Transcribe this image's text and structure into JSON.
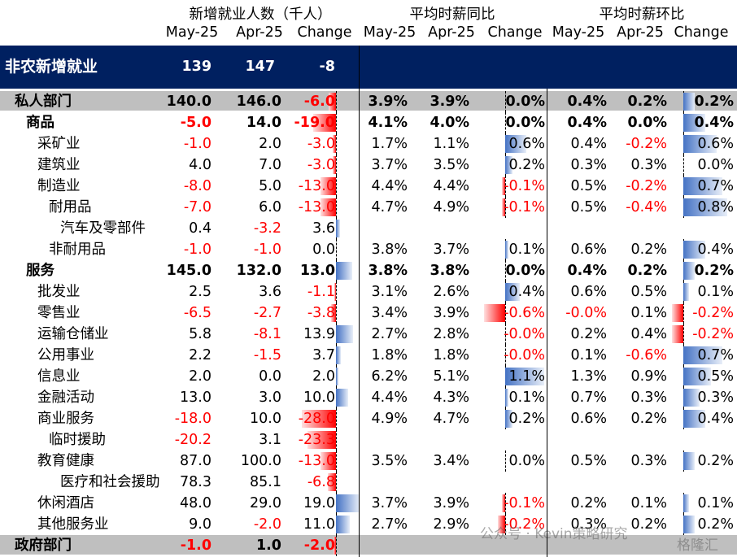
{
  "headers": {
    "group1": "新增就业人数（千人）",
    "group2": "平均时薪同比",
    "group3": "平均时薪环比",
    "cols": [
      "May-25",
      "Apr-25",
      "Change",
      "May-25",
      "Apr-25",
      "Change",
      "May-25",
      "Apr-25",
      "Change"
    ]
  },
  "nonfarm": {
    "label": "非农新增就业",
    "v1": "139",
    "v2": "147",
    "v3": "-8"
  },
  "rows": [
    {
      "label": "私人部门",
      "indent": 0,
      "bold": true,
      "bg": "priv",
      "e1": "140.0",
      "e2": "146.0",
      "e3": "-6.0",
      "e3n": -6.0,
      "y1": "3.9%",
      "y2": "3.9%",
      "y3": "0.0%",
      "y3n": 0.0,
      "m1": "0.4%",
      "m2": "0.2%",
      "m3": "0.2%",
      "m3n": 0.2
    },
    {
      "label": "商品",
      "indent": 1,
      "bold": true,
      "e1": "-5.0",
      "e2": "14.0",
      "e3": "-19.0",
      "e3n": -19.0,
      "y1": "4.1%",
      "y2": "4.0%",
      "y3": "0.0%",
      "y3n": 0.0,
      "m1": "0.4%",
      "m2": "0.0%",
      "m3": "0.4%",
      "m3n": 0.4
    },
    {
      "label": "采矿业",
      "indent": 2,
      "e1": "-1.0",
      "e2": "2.0",
      "e3": "-3.0",
      "e3n": -3.0,
      "y1": "1.7%",
      "y2": "1.1%",
      "y3": "0.6%",
      "y3n": 0.6,
      "m1": "0.4%",
      "m2": "-0.2%",
      "m3": "0.6%",
      "m3n": 0.6
    },
    {
      "label": "建筑业",
      "indent": 2,
      "e1": "4.0",
      "e2": "7.0",
      "e3": "-3.0",
      "e3n": -3.0,
      "y1": "3.7%",
      "y2": "3.5%",
      "y3": "0.2%",
      "y3n": 0.2,
      "m1": "0.3%",
      "m2": "0.3%",
      "m3": "0.0%",
      "m3n": 0.0
    },
    {
      "label": "制造业",
      "indent": 2,
      "e1": "-8.0",
      "e2": "5.0",
      "e3": "-13.0",
      "e3n": -13.0,
      "y1": "4.4%",
      "y2": "4.4%",
      "y3": "-0.1%",
      "y3n": -0.1,
      "m1": "0.5%",
      "m2": "-0.2%",
      "m3": "0.7%",
      "m3n": 0.7
    },
    {
      "label": "耐用品",
      "indent": 3,
      "e1": "-7.0",
      "e2": "6.0",
      "e3": "-13.0",
      "e3n": -13.0,
      "y1": "4.7%",
      "y2": "4.9%",
      "y3": "-0.1%",
      "y3n": -0.1,
      "m1": "0.5%",
      "m2": "-0.4%",
      "m3": "0.8%",
      "m3n": 0.8
    },
    {
      "label": "汽车及零部件",
      "indent": 4,
      "e1": "0.4",
      "e2": "-3.2",
      "e3": "3.6",
      "e3n": 3.6,
      "y1": "",
      "y2": "",
      "y3": "",
      "y3n": null,
      "m1": "",
      "m2": "",
      "m3": "",
      "m3n": null
    },
    {
      "label": "非耐用品",
      "indent": 3,
      "e1": "-1.0",
      "e2": "-1.0",
      "e3": "0.0",
      "e3n": 0.0,
      "y1": "3.8%",
      "y2": "3.7%",
      "y3": "0.1%",
      "y3n": 0.1,
      "m1": "0.6%",
      "m2": "0.2%",
      "m3": "0.4%",
      "m3n": 0.4
    },
    {
      "label": "服务",
      "indent": 1,
      "bold": true,
      "e1": "145.0",
      "e2": "132.0",
      "e3": "13.0",
      "e3n": 13.0,
      "y1": "3.8%",
      "y2": "3.8%",
      "y3": "0.0%",
      "y3n": 0.0,
      "m1": "0.4%",
      "m2": "0.2%",
      "m3": "0.2%",
      "m3n": 0.2
    },
    {
      "label": "批发业",
      "indent": 2,
      "e1": "2.5",
      "e2": "3.6",
      "e3": "-1.1",
      "e3n": -1.1,
      "y1": "3.1%",
      "y2": "2.6%",
      "y3": "0.4%",
      "y3n": 0.4,
      "m1": "0.6%",
      "m2": "0.5%",
      "m3": "0.1%",
      "m3n": 0.1
    },
    {
      "label": "零售业",
      "indent": 2,
      "e1": "-6.5",
      "e2": "-2.7",
      "e3": "-3.8",
      "e3n": -3.8,
      "y1": "3.4%",
      "y2": "3.9%",
      "y3": "-0.6%",
      "y3n": -0.6,
      "m1": "-0.0%",
      "m2": "0.1%",
      "m3": "-0.2%",
      "m3n": -0.2
    },
    {
      "label": "运输仓储业",
      "indent": 2,
      "e1": "5.8",
      "e2": "-8.1",
      "e3": "13.9",
      "e3n": 13.9,
      "y1": "2.7%",
      "y2": "2.8%",
      "y3": "-0.0%",
      "y3n": -0.0,
      "m1": "0.2%",
      "m2": "0.4%",
      "m3": "-0.2%",
      "m3n": -0.2
    },
    {
      "label": "公用事业",
      "indent": 2,
      "e1": "2.2",
      "e2": "-1.5",
      "e3": "3.7",
      "e3n": 3.7,
      "y1": "1.8%",
      "y2": "1.8%",
      "y3": "-0.0%",
      "y3n": -0.0,
      "m1": "0.1%",
      "m2": "-0.6%",
      "m3": "0.7%",
      "m3n": 0.7
    },
    {
      "label": "信息业",
      "indent": 2,
      "e1": "2.0",
      "e2": "0.0",
      "e3": "2.0",
      "e3n": 2.0,
      "y1": "6.2%",
      "y2": "5.1%",
      "y3": "1.1%",
      "y3n": 1.1,
      "m1": "1.3%",
      "m2": "0.9%",
      "m3": "0.5%",
      "m3n": 0.5
    },
    {
      "label": "金融活动",
      "indent": 2,
      "e1": "13.0",
      "e2": "3.0",
      "e3": "10.0",
      "e3n": 10.0,
      "y1": "4.4%",
      "y2": "4.3%",
      "y3": "0.1%",
      "y3n": 0.1,
      "m1": "0.7%",
      "m2": "0.3%",
      "m3": "0.3%",
      "m3n": 0.3
    },
    {
      "label": "商业服务",
      "indent": 2,
      "e1": "-18.0",
      "e2": "10.0",
      "e3": "-28.0",
      "e3n": -28.0,
      "y1": "4.9%",
      "y2": "4.7%",
      "y3": "0.2%",
      "y3n": 0.2,
      "m1": "0.6%",
      "m2": "0.2%",
      "m3": "0.4%",
      "m3n": 0.4
    },
    {
      "label": "临时援助",
      "indent": 3,
      "e1": "-20.2",
      "e2": "3.1",
      "e3": "-23.3",
      "e3n": -23.3,
      "y1": "",
      "y2": "",
      "y3": "",
      "y3n": null,
      "m1": "",
      "m2": "",
      "m3": "",
      "m3n": null
    },
    {
      "label": "教育健康",
      "indent": 2,
      "e1": "87.0",
      "e2": "100.0",
      "e3": "-13.0",
      "e3n": -13.0,
      "y1": "3.5%",
      "y2": "3.4%",
      "y3": "0.0%",
      "y3n": 0.0,
      "m1": "0.5%",
      "m2": "0.3%",
      "m3": "0.2%",
      "m3n": 0.2
    },
    {
      "label": "医疗和社会援助",
      "indent": 4,
      "e1": "78.3",
      "e2": "85.1",
      "e3": "-6.8",
      "e3n": -6.8,
      "y1": "",
      "y2": "",
      "y3": "",
      "y3n": null,
      "m1": "",
      "m2": "",
      "m3": "",
      "m3n": null
    },
    {
      "label": "休闲酒店",
      "indent": 2,
      "e1": "48.0",
      "e2": "29.0",
      "e3": "19.0",
      "e3n": 19.0,
      "y1": "3.7%",
      "y2": "3.9%",
      "y3": "-0.1%",
      "y3n": -0.1,
      "m1": "0.2%",
      "m2": "0.1%",
      "m3": "0.1%",
      "m3n": 0.1
    },
    {
      "label": "其他服务业",
      "indent": 2,
      "e1": "9.0",
      "e2": "-2.0",
      "e3": "11.0",
      "e3n": 11.0,
      "y1": "2.7%",
      "y2": "2.9%",
      "y3": "-0.2%",
      "y3n": -0.2,
      "m1": "0.3%",
      "m2": "0.2%",
      "m3": "0.2%",
      "m3n": 0.2
    },
    {
      "label": "政府部门",
      "indent": 0,
      "bold": true,
      "bg": "priv",
      "e1": "-1.0",
      "e2": "1.0",
      "e3": "-2.0",
      "e3n": -2.0,
      "y1": "",
      "y2": "",
      "y3": "",
      "y3n": null,
      "m1": "",
      "m2": "",
      "m3": "",
      "m3n": null
    }
  ],
  "watermark": "公众号 · Kevin策略研究",
  "watermark2": "格隆汇"
}
